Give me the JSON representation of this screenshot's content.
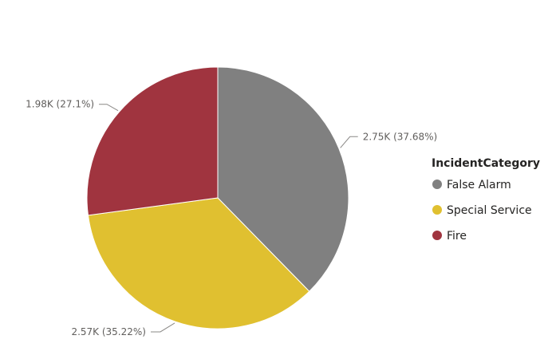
{
  "chart_data": {
    "type": "pie",
    "legend": {
      "title": "IncidentCategory",
      "position": "right"
    },
    "slices": [
      {
        "name": "False Alarm",
        "value": 2750,
        "percent": 37.68,
        "label": "2.75K (37.68%)",
        "color": "#808080"
      },
      {
        "name": "Special Service",
        "value": 2570,
        "percent": 35.22,
        "label": "2.57K (35.22%)",
        "color": "#E0C030"
      },
      {
        "name": "Fire",
        "value": 1980,
        "percent": 27.1,
        "label": "1.98K (27.1%)",
        "color": "#A0343F"
      }
    ]
  }
}
